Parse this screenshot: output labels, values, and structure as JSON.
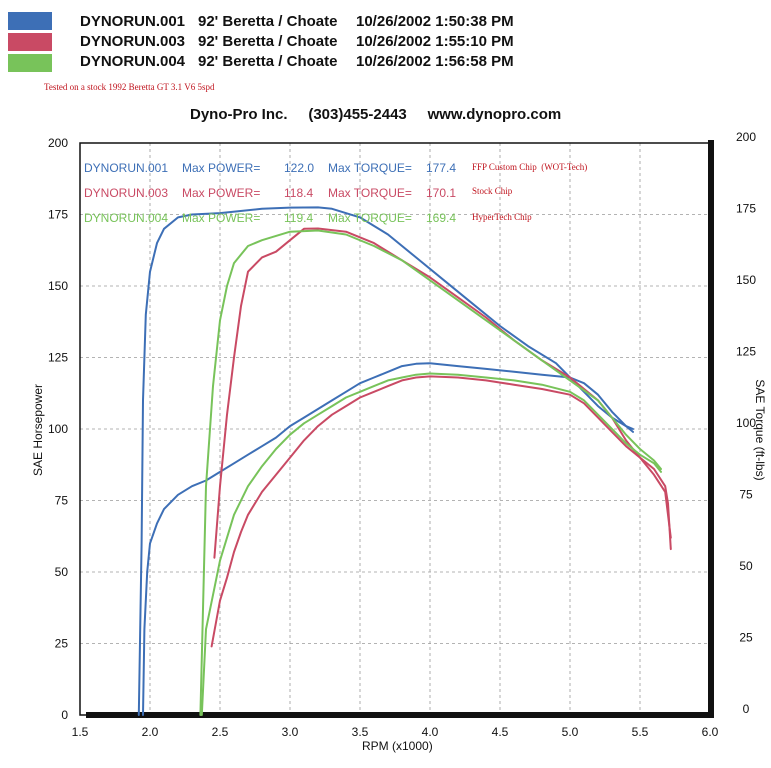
{
  "header": {
    "runs": [
      {
        "id": "DYNORUN.001",
        "car": "92'  Beretta / Choate",
        "datetime": "10/26/2002 1:50:38 PM",
        "color": "#3d6fb6"
      },
      {
        "id": "DYNORUN.003",
        "car": "92'  Beretta / Choate",
        "datetime": "10/26/2002 1:55:10 PM",
        "color": "#c94a64"
      },
      {
        "id": "DYNORUN.004",
        "car": "92'  Beretta / Choate",
        "datetime": "10/26/2002 1:56:58 PM",
        "color": "#78c35a"
      }
    ],
    "test_note": "Tested on a stock 1992 Beretta GT 3.1 V6 5spd",
    "company": "Dyno-Pro Inc.     (303)455-2443     www.dynopro.com"
  },
  "chart_data": {
    "type": "line",
    "xlabel": "RPM (x1000)",
    "ylabel_left": "SAE Horsepower",
    "ylabel_right": "SAE Torque (ft-lbs)",
    "xlim": [
      1.5,
      6.0
    ],
    "ylim_left": [
      0,
      200
    ],
    "ylim_right": [
      0,
      200
    ],
    "x_ticks": [
      "1.5",
      "2.0",
      "2.5",
      "3.0",
      "3.5",
      "4.0",
      "4.5",
      "5.0",
      "5.5",
      "6.0"
    ],
    "y_ticks": [
      "0",
      "25",
      "50",
      "75",
      "100",
      "125",
      "150",
      "175",
      "200"
    ],
    "grid": true,
    "legend": [
      {
        "run": "DYNORUN.001",
        "power_label": "Max POWER=",
        "power": "122.0",
        "torque_label": "Max TORQUE=",
        "torque": "177.4",
        "note": "FFP Custom Chip  (WOT-Tech)",
        "color": "#3d6fb6"
      },
      {
        "run": "DYNORUN.003",
        "power_label": "Max POWER=",
        "power": "118.4",
        "torque_label": "Max TORQUE=",
        "torque": "170.1",
        "note": "Stock Chip",
        "color": "#c94a64"
      },
      {
        "run": "DYNORUN.004",
        "power_label": "Max POWER=",
        "power": "119.4",
        "torque_label": "Max TORQUE=",
        "torque": "169.4",
        "note": "HyperTech Chip",
        "color": "#78c35a"
      }
    ],
    "series": [
      {
        "name": "DYNORUN.001",
        "measure": "power",
        "color": "#3d6fb6",
        "points": [
          [
            1.95,
            0
          ],
          [
            1.96,
            30
          ],
          [
            1.98,
            50
          ],
          [
            2.0,
            60
          ],
          [
            2.05,
            67
          ],
          [
            2.1,
            72
          ],
          [
            2.2,
            77
          ],
          [
            2.3,
            80
          ],
          [
            2.4,
            82
          ],
          [
            2.5,
            85
          ],
          [
            2.6,
            88
          ],
          [
            2.7,
            91
          ],
          [
            2.8,
            94
          ],
          [
            2.9,
            97
          ],
          [
            3.0,
            101
          ],
          [
            3.1,
            104
          ],
          [
            3.2,
            107
          ],
          [
            3.3,
            110
          ],
          [
            3.4,
            113
          ],
          [
            3.5,
            116
          ],
          [
            3.6,
            118
          ],
          [
            3.7,
            120
          ],
          [
            3.8,
            122
          ],
          [
            3.9,
            122.8
          ],
          [
            4.0,
            123
          ],
          [
            4.2,
            122
          ],
          [
            4.4,
            121
          ],
          [
            4.6,
            120
          ],
          [
            4.8,
            119
          ],
          [
            5.0,
            118
          ],
          [
            5.1,
            116
          ],
          [
            5.2,
            112
          ],
          [
            5.3,
            106
          ],
          [
            5.4,
            101
          ],
          [
            5.45,
            100
          ]
        ]
      },
      {
        "name": "DYNORUN.001",
        "measure": "torque",
        "color": "#3d6fb6",
        "points": [
          [
            1.92,
            0
          ],
          [
            1.94,
            60
          ],
          [
            1.95,
            110
          ],
          [
            1.97,
            140
          ],
          [
            2.0,
            155
          ],
          [
            2.05,
            165
          ],
          [
            2.1,
            170
          ],
          [
            2.2,
            174
          ],
          [
            2.3,
            175
          ],
          [
            2.5,
            175.5
          ],
          [
            2.8,
            177
          ],
          [
            3.0,
            177.4
          ],
          [
            3.2,
            177.5
          ],
          [
            3.3,
            177
          ],
          [
            3.5,
            174
          ],
          [
            3.7,
            168
          ],
          [
            3.9,
            160
          ],
          [
            4.1,
            152
          ],
          [
            4.3,
            144
          ],
          [
            4.5,
            136
          ],
          [
            4.7,
            129
          ],
          [
            4.9,
            123
          ],
          [
            5.0,
            118
          ],
          [
            5.1,
            113
          ],
          [
            5.2,
            108
          ],
          [
            5.3,
            104
          ],
          [
            5.4,
            101
          ],
          [
            5.45,
            99
          ]
        ]
      },
      {
        "name": "DYNORUN.003",
        "measure": "power",
        "color": "#c94a64",
        "points": [
          [
            2.44,
            24
          ],
          [
            2.47,
            32
          ],
          [
            2.5,
            40
          ],
          [
            2.55,
            48
          ],
          [
            2.6,
            57
          ],
          [
            2.65,
            64
          ],
          [
            2.7,
            70
          ],
          [
            2.8,
            78
          ],
          [
            2.9,
            84
          ],
          [
            3.0,
            90
          ],
          [
            3.1,
            96
          ],
          [
            3.2,
            101
          ],
          [
            3.3,
            105
          ],
          [
            3.4,
            108
          ],
          [
            3.5,
            111
          ],
          [
            3.6,
            113
          ],
          [
            3.7,
            115
          ],
          [
            3.8,
            117
          ],
          [
            3.9,
            118
          ],
          [
            4.0,
            118.4
          ],
          [
            4.2,
            118
          ],
          [
            4.4,
            117
          ],
          [
            4.6,
            115.5
          ],
          [
            4.8,
            114
          ],
          [
            5.0,
            112
          ],
          [
            5.1,
            109
          ],
          [
            5.2,
            104
          ],
          [
            5.3,
            99
          ],
          [
            5.4,
            94
          ],
          [
            5.5,
            90
          ],
          [
            5.6,
            86
          ],
          [
            5.68,
            80
          ],
          [
            5.7,
            74
          ],
          [
            5.72,
            58
          ]
        ]
      },
      {
        "name": "DYNORUN.003",
        "measure": "torque",
        "color": "#c94a64",
        "points": [
          [
            2.46,
            55
          ],
          [
            2.5,
            80
          ],
          [
            2.55,
            105
          ],
          [
            2.6,
            125
          ],
          [
            2.65,
            143
          ],
          [
            2.7,
            155
          ],
          [
            2.8,
            160
          ],
          [
            2.9,
            162
          ],
          [
            3.0,
            166
          ],
          [
            3.1,
            170
          ],
          [
            3.2,
            170.1
          ],
          [
            3.4,
            169
          ],
          [
            3.6,
            165
          ],
          [
            3.8,
            159
          ],
          [
            4.0,
            153
          ],
          [
            4.2,
            146
          ],
          [
            4.4,
            139
          ],
          [
            4.6,
            131
          ],
          [
            4.8,
            124
          ],
          [
            5.0,
            118
          ],
          [
            5.2,
            110
          ],
          [
            5.3,
            104
          ],
          [
            5.4,
            96
          ],
          [
            5.5,
            90
          ],
          [
            5.6,
            84
          ],
          [
            5.68,
            78
          ],
          [
            5.72,
            62
          ]
        ]
      },
      {
        "name": "DYNORUN.004",
        "measure": "power",
        "color": "#78c35a",
        "points": [
          [
            2.37,
            0
          ],
          [
            2.38,
            10
          ],
          [
            2.4,
            30
          ],
          [
            2.45,
            42
          ],
          [
            2.5,
            54
          ],
          [
            2.6,
            70
          ],
          [
            2.7,
            80
          ],
          [
            2.8,
            87
          ],
          [
            2.9,
            93
          ],
          [
            3.0,
            98
          ],
          [
            3.1,
            102
          ],
          [
            3.2,
            105
          ],
          [
            3.3,
            108
          ],
          [
            3.4,
            111
          ],
          [
            3.5,
            113
          ],
          [
            3.6,
            115
          ],
          [
            3.7,
            117
          ],
          [
            3.8,
            118
          ],
          [
            3.9,
            119
          ],
          [
            4.0,
            119.4
          ],
          [
            4.2,
            119
          ],
          [
            4.4,
            118
          ],
          [
            4.6,
            117
          ],
          [
            4.8,
            115.5
          ],
          [
            5.0,
            113
          ],
          [
            5.1,
            110
          ],
          [
            5.2,
            105
          ],
          [
            5.3,
            100
          ],
          [
            5.4,
            95
          ],
          [
            5.5,
            91
          ],
          [
            5.6,
            88
          ],
          [
            5.65,
            85
          ]
        ]
      },
      {
        "name": "DYNORUN.004",
        "measure": "torque",
        "color": "#78c35a",
        "points": [
          [
            2.36,
            0
          ],
          [
            2.38,
            40
          ],
          [
            2.4,
            80
          ],
          [
            2.45,
            115
          ],
          [
            2.5,
            138
          ],
          [
            2.55,
            150
          ],
          [
            2.6,
            158
          ],
          [
            2.7,
            164
          ],
          [
            2.8,
            166
          ],
          [
            3.0,
            169
          ],
          [
            3.2,
            169.4
          ],
          [
            3.4,
            168
          ],
          [
            3.6,
            164
          ],
          [
            3.8,
            159
          ],
          [
            4.0,
            152
          ],
          [
            4.2,
            145
          ],
          [
            4.4,
            138
          ],
          [
            4.6,
            131
          ],
          [
            4.8,
            124
          ],
          [
            5.0,
            117
          ],
          [
            5.2,
            110
          ],
          [
            5.3,
            104
          ],
          [
            5.4,
            98
          ],
          [
            5.5,
            93
          ],
          [
            5.6,
            89
          ],
          [
            5.65,
            86
          ]
        ]
      }
    ]
  }
}
